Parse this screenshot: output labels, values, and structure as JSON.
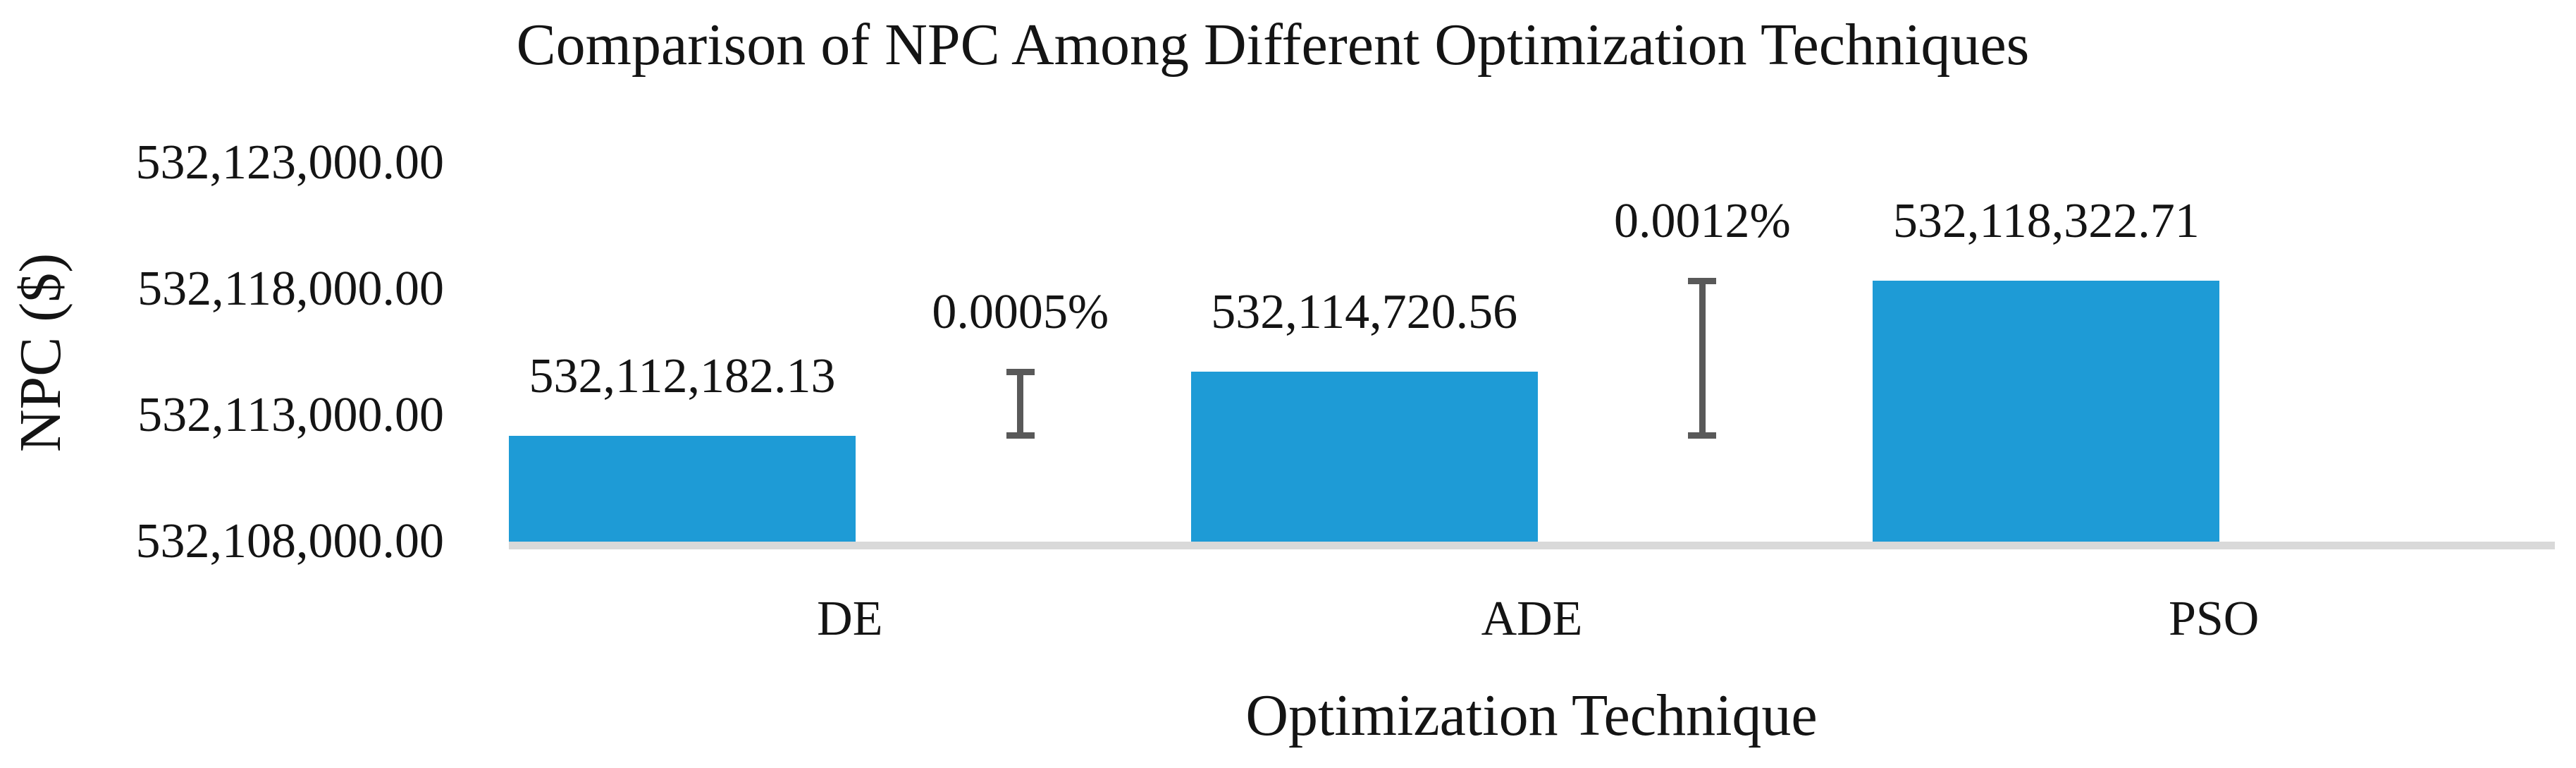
{
  "figure": {
    "title": "Comparison of NPC Among Different Optimization Techniques",
    "x_axis_title": "Optimization Technique",
    "y_axis_title": "NPC ($)"
  },
  "chart_data": {
    "type": "bar",
    "title": "Comparison of NPC Among Different Optimization Techniques",
    "xlabel": "Optimization Technique",
    "ylabel": "NPC ($)",
    "categories": [
      "DE",
      "ADE",
      "PSO"
    ],
    "values": [
      532112182.13,
      532114720.56,
      532118322.71
    ],
    "value_labels": [
      "532,112,182.13",
      "532,114,720.56",
      "532,118,322.71"
    ],
    "ylim": [
      532108000,
      532123000
    ],
    "y_tick_step": 5000,
    "y_ticks": [
      532108000,
      532113000,
      532118000,
      532123000
    ],
    "y_tick_labels": [
      "532,108,000.00",
      "532,113,000.00",
      "532,118,000.00",
      "532,123,000.00"
    ],
    "grid": "off",
    "legend": "none",
    "annotations": [
      {
        "label": "0.0005%",
        "type": "difference-marker",
        "from_category": "DE",
        "to_category": "ADE",
        "slot_index": 0
      },
      {
        "label": "0.0012%",
        "type": "difference-marker",
        "from_category": "DE",
        "to_category": "PSO",
        "slot_index": 1
      }
    ],
    "colors": {
      "bar": "#1E9BD6",
      "difference_marker": "#595959",
      "axis_line": "#D9D9D9",
      "text": "#141414"
    }
  }
}
